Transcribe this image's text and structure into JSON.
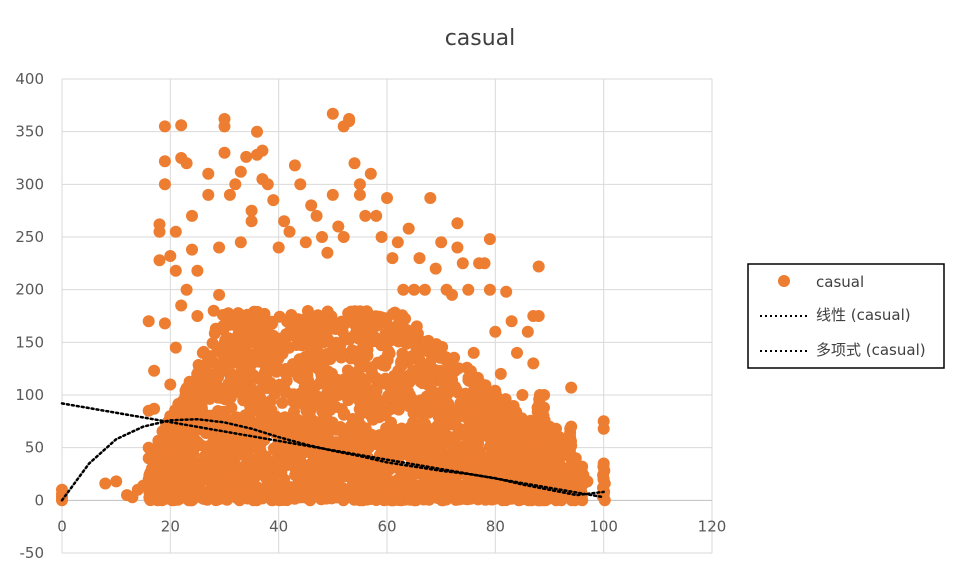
{
  "chart_data": {
    "type": "scatter",
    "title": "casual",
    "xlabel": "",
    "ylabel": "",
    "xlim": [
      0,
      120
    ],
    "ylim": [
      -50,
      400
    ],
    "x_ticks": [
      "0",
      "20",
      "40",
      "60",
      "80",
      "100",
      "120"
    ],
    "y_ticks": [
      "-50",
      "0",
      "50",
      "100",
      "150",
      "200",
      "250",
      "300",
      "350",
      "400"
    ],
    "grid": "vertical and horizontal major gridlines",
    "legend_position": "right",
    "colors": {
      "points": "#ED7D31",
      "trendlines": "#000000",
      "grid": "#D9D9D9"
    },
    "series": [
      {
        "name": "casual",
        "kind": "scatter",
        "note_points": "dense cloud; representative points listed",
        "points": [
          [
            0,
            0
          ],
          [
            0,
            3
          ],
          [
            0,
            6
          ],
          [
            0,
            10
          ],
          [
            8,
            16
          ],
          [
            10,
            18
          ],
          [
            12,
            5
          ],
          [
            13,
            3
          ],
          [
            14,
            10
          ],
          [
            15,
            14
          ],
          [
            16,
            20
          ],
          [
            16,
            40
          ],
          [
            16,
            50
          ],
          [
            16,
            85
          ],
          [
            16,
            170
          ],
          [
            17,
            87
          ],
          [
            17,
            123
          ],
          [
            18,
            35
          ],
          [
            18,
            228
          ],
          [
            18,
            255
          ],
          [
            18,
            262
          ],
          [
            19,
            168
          ],
          [
            19,
            300
          ],
          [
            19,
            322
          ],
          [
            19,
            355
          ],
          [
            20,
            80
          ],
          [
            20,
            110
          ],
          [
            20,
            232
          ],
          [
            21,
            145
          ],
          [
            21,
            218
          ],
          [
            21,
            255
          ],
          [
            22,
            185
          ],
          [
            22,
            325
          ],
          [
            22,
            356
          ],
          [
            23,
            320
          ],
          [
            23,
            200
          ],
          [
            24,
            238
          ],
          [
            24,
            270
          ],
          [
            25,
            175
          ],
          [
            25,
            218
          ],
          [
            26,
            100
          ],
          [
            26,
            140
          ],
          [
            27,
            290
          ],
          [
            27,
            310
          ],
          [
            28,
            180
          ],
          [
            29,
            240
          ],
          [
            29,
            195
          ],
          [
            30,
            330
          ],
          [
            30,
            355
          ],
          [
            30,
            362
          ],
          [
            31,
            290
          ],
          [
            32,
            300
          ],
          [
            33,
            312
          ],
          [
            33,
            245
          ],
          [
            34,
            326
          ],
          [
            35,
            275
          ],
          [
            35,
            265
          ],
          [
            36,
            350
          ],
          [
            36,
            328
          ],
          [
            37,
            305
          ],
          [
            37,
            332
          ],
          [
            38,
            300
          ],
          [
            39,
            285
          ],
          [
            40,
            240
          ],
          [
            41,
            265
          ],
          [
            42,
            255
          ],
          [
            43,
            318
          ],
          [
            44,
            300
          ],
          [
            45,
            245
          ],
          [
            46,
            280
          ],
          [
            47,
            270
          ],
          [
            48,
            250
          ],
          [
            49,
            235
          ],
          [
            50,
            367
          ],
          [
            50,
            290
          ],
          [
            51,
            260
          ],
          [
            52,
            250
          ],
          [
            52,
            355
          ],
          [
            53,
            360
          ],
          [
            53,
            362
          ],
          [
            54,
            320
          ],
          [
            55,
            300
          ],
          [
            55,
            290
          ],
          [
            56,
            270
          ],
          [
            57,
            310
          ],
          [
            58,
            270
          ],
          [
            59,
            250
          ],
          [
            60,
            287
          ],
          [
            61,
            230
          ],
          [
            62,
            245
          ],
          [
            63,
            200
          ],
          [
            64,
            258
          ],
          [
            65,
            200
          ],
          [
            66,
            230
          ],
          [
            67,
            200
          ],
          [
            68,
            287
          ],
          [
            69,
            220
          ],
          [
            70,
            245
          ],
          [
            71,
            200
          ],
          [
            72,
            195
          ],
          [
            73,
            263
          ],
          [
            73,
            240
          ],
          [
            74,
            225
          ],
          [
            75,
            200
          ],
          [
            76,
            140
          ],
          [
            77,
            225
          ],
          [
            78,
            225
          ],
          [
            79,
            200
          ],
          [
            79,
            248
          ],
          [
            80,
            160
          ],
          [
            81,
            120
          ],
          [
            82,
            198
          ],
          [
            83,
            170
          ],
          [
            84,
            140
          ],
          [
            85,
            100
          ],
          [
            86,
            160
          ],
          [
            87,
            130
          ],
          [
            87,
            175
          ],
          [
            88,
            222
          ],
          [
            88,
            175
          ],
          [
            89,
            100
          ],
          [
            90,
            70
          ],
          [
            91,
            40
          ],
          [
            92,
            30
          ],
          [
            93,
            20
          ],
          [
            94,
            107
          ],
          [
            94,
            70
          ],
          [
            95,
            15
          ],
          [
            96,
            5
          ],
          [
            97,
            18
          ],
          [
            100,
            75
          ],
          [
            100,
            68
          ],
          [
            100,
            35
          ],
          [
            100,
            20
          ],
          [
            100,
            5
          ]
        ]
      },
      {
        "name": "线性 (casual)",
        "kind": "linear-trendline",
        "points": [
          [
            0,
            92
          ],
          [
            100,
            3
          ]
        ]
      },
      {
        "name": "多项式 (casual)",
        "kind": "polynomial-trendline",
        "points": [
          [
            0,
            0
          ],
          [
            5,
            35
          ],
          [
            10,
            58
          ],
          [
            15,
            70
          ],
          [
            20,
            76
          ],
          [
            25,
            77
          ],
          [
            30,
            74
          ],
          [
            35,
            68
          ],
          [
            40,
            60
          ],
          [
            45,
            53
          ],
          [
            50,
            47
          ],
          [
            55,
            42
          ],
          [
            60,
            36
          ],
          [
            65,
            32
          ],
          [
            70,
            28
          ],
          [
            75,
            25
          ],
          [
            80,
            21
          ],
          [
            85,
            15
          ],
          [
            90,
            10
          ],
          [
            95,
            5
          ],
          [
            100,
            8
          ]
        ]
      }
    ]
  }
}
